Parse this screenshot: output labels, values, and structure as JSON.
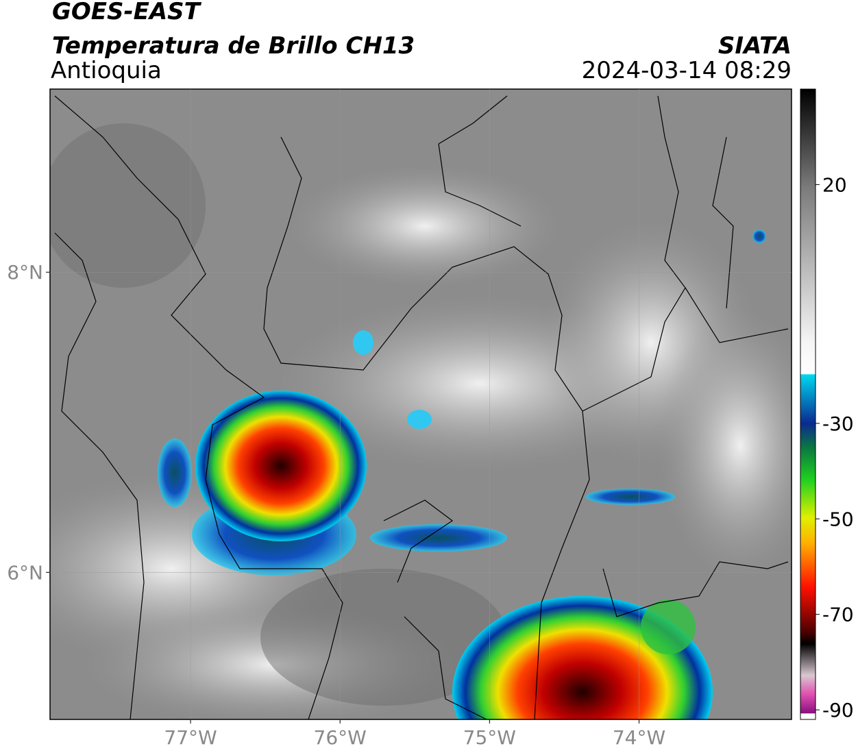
{
  "header": {
    "satellite": "GOES-EAST",
    "product": "Temperatura de Brillo CH13",
    "region": "Antioquia",
    "source": "SIATA",
    "datetime": "2024-03-14 08:29"
  },
  "map": {
    "xlim": [
      -77.94,
      -72.98
    ],
    "ylim": [
      5.02,
      9.22
    ],
    "xticks": [
      {
        "value": -77,
        "label": "77°W"
      },
      {
        "value": -76,
        "label": "76°W"
      },
      {
        "value": -75,
        "label": "75°W"
      },
      {
        "value": -74,
        "label": "74°W"
      }
    ],
    "yticks": [
      {
        "value": 6,
        "label": "6°N"
      },
      {
        "value": 8,
        "label": "8°N"
      }
    ],
    "grid": true
  },
  "colorbar": {
    "lim": [
      -92,
      40
    ],
    "ticks": [
      20,
      -30,
      -50,
      -70,
      -90
    ]
  }
}
